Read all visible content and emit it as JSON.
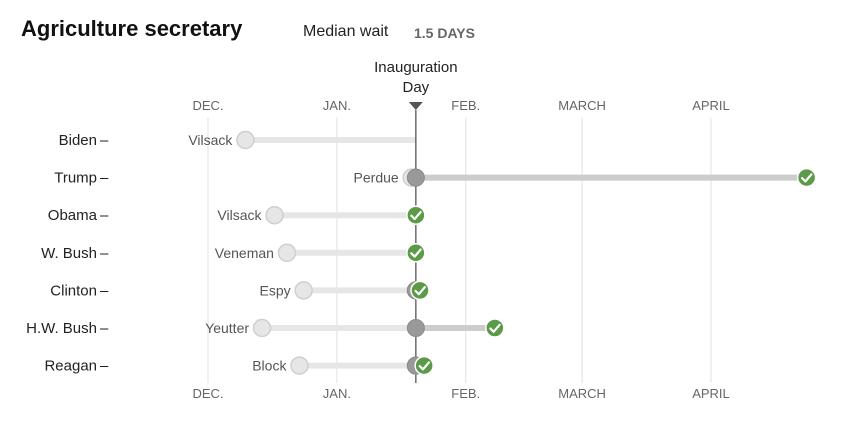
{
  "header": {
    "title": "Agriculture secretary",
    "median_label": "Median wait",
    "median_value": "1.5 DAYS"
  },
  "chart_data": {
    "type": "range",
    "title": "Agriculture secretary",
    "x_axis": {
      "range": [
        "2016-11-23",
        "2017-05-05"
      ],
      "ticks": [
        {
          "label": "DEC.",
          "date": "2016-12-01"
        },
        {
          "label": "JAN.",
          "date": "2017-01-01"
        },
        {
          "label": "FEB.",
          "date": "2017-02-01"
        },
        {
          "label": "MARCH",
          "date": "2017-03-01"
        },
        {
          "label": "APRIL",
          "date": "2017-04-01"
        }
      ],
      "reference_line": {
        "label": [
          "Inauguration",
          "Day"
        ],
        "date": "2017-01-20"
      }
    },
    "grid": true,
    "rows": [
      {
        "president": "Biden",
        "nominee": "Vilsack",
        "announced": "2016-12-10",
        "confirmed": null
      },
      {
        "president": "Trump",
        "nominee": "Perdue",
        "announced": "2017-01-19",
        "confirmed": "2017-04-24"
      },
      {
        "president": "Obama",
        "nominee": "Vilsack",
        "announced": "2016-12-17",
        "confirmed": "2017-01-20"
      },
      {
        "president": "W. Bush",
        "nominee": "Veneman",
        "announced": "2016-12-20",
        "confirmed": "2017-01-20"
      },
      {
        "president": "Clinton",
        "nominee": "Espy",
        "announced": "2016-12-24",
        "confirmed": "2017-01-21"
      },
      {
        "president": "H.W. Bush",
        "nominee": "Yeutter",
        "announced": "2016-12-14",
        "confirmed": "2017-02-08"
      },
      {
        "president": "Reagan",
        "nominee": "Block",
        "announced": "2016-12-23",
        "confirmed": "2017-01-22"
      }
    ]
  },
  "colors": {
    "confirmed_check": "#5b9a47",
    "grid": "#e0e0e0",
    "pending_bar": "#e6e6e6",
    "post_inaug_bar": "#cccccc",
    "inauguration_dot": "#999999",
    "announce_dot_fill": "#e6e6e6",
    "announce_dot_stroke": "#cfcfcf",
    "axis_line": "#555555"
  }
}
